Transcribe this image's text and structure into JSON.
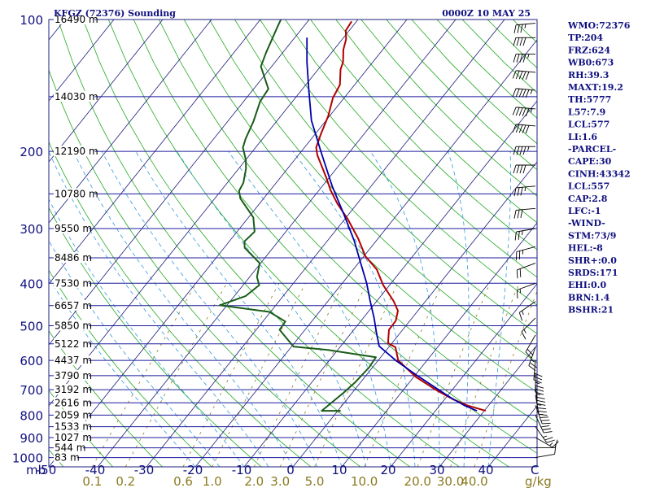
{
  "header": {
    "left": "KFGZ (72376) Sounding",
    "right": "0000Z 10 MAY 25"
  },
  "indices": [
    "WMO:72376",
    "TP:204",
    "FRZ:624",
    "WB0:673",
    "RH:39.3",
    "MAXT:19.2",
    "TH:5777",
    "L57:7.9",
    "LCL:577",
    "LI:1.6",
    "-PARCEL-",
    "CAPE:30",
    "CINH:43342",
    "LCL:557",
    "CAP:2.8",
    "LFC:-1",
    "-WIND-",
    "STM:73/9",
    "HEL:-8",
    "SHR+:0.0",
    "SRDS:171",
    "EHI:0.0",
    "BRN:1.4",
    "BSHR:21"
  ],
  "colors": {
    "frame": "#202080",
    "isobar": "#1c1c9c",
    "isotherm": "#1a1a7a",
    "dry_adiabat": "#22aa22",
    "moist_adiabat": "#3399dd",
    "mixing_ratio": "#8a7a20",
    "temperature": "#b30000",
    "dewpoint": "#1a5c1a",
    "parcel": "#0000aa",
    "wind": "#000000"
  },
  "chart_data": {
    "type": "skew-t",
    "pressure_unit": "mb",
    "y_axis": {
      "scale": "log",
      "range_mb": [
        1000,
        100
      ],
      "ticks_mb": [
        100,
        200,
        300,
        400,
        500,
        600,
        700,
        800,
        900,
        1000
      ],
      "tick_labels": [
        "100",
        "200",
        "300",
        "400",
        "500",
        "600",
        "700",
        "800",
        "900",
        "1000"
      ]
    },
    "x_axis": {
      "label": "C",
      "range_c": [
        -50,
        50
      ],
      "ticks_c": [
        -50,
        -40,
        -30,
        -20,
        -10,
        0,
        10,
        20,
        30,
        40
      ],
      "tick_labels": [
        "-50",
        "-40",
        "-30",
        "-20",
        "-10",
        "0",
        "10",
        "20",
        "30",
        "40"
      ]
    },
    "height_labels": [
      {
        "p": 100,
        "text": "16490 m"
      },
      {
        "p": 150,
        "text": "14030 m"
      },
      {
        "p": 200,
        "text": "12190 m"
      },
      {
        "p": 250,
        "text": "10780 m"
      },
      {
        "p": 300,
        "text": "9550 m"
      },
      {
        "p": 350,
        "text": "8486 m"
      },
      {
        "p": 400,
        "text": "7530 m"
      },
      {
        "p": 450,
        "text": "6657 m"
      },
      {
        "p": 500,
        "text": "5850 m"
      },
      {
        "p": 550,
        "text": "5122 m"
      },
      {
        "p": 600,
        "text": "4437 m"
      },
      {
        "p": 650,
        "text": "3790 m"
      },
      {
        "p": 700,
        "text": "3192 m"
      },
      {
        "p": 750,
        "text": "2616 m"
      },
      {
        "p": 800,
        "text": "2059 m"
      },
      {
        "p": 850,
        "text": "1533 m"
      },
      {
        "p": 900,
        "text": "1027 m"
      },
      {
        "p": 950,
        "text": "544 m"
      },
      {
        "p": 1000,
        "text": "83 m"
      }
    ],
    "mixing_ratio": {
      "unit": "g/kg",
      "labels": [
        "0.1",
        "0.2",
        "0.6",
        "1.0",
        "2.0",
        "3.0",
        "5.0",
        "10.0",
        "20.0",
        "30.0",
        "40.0"
      ],
      "values": [
        0.1,
        0.2,
        0.6,
        1.0,
        2.0,
        3.0,
        5.0,
        10.0,
        20.0,
        30.0,
        40.0
      ]
    },
    "series": [
      {
        "name": "temperature",
        "points": [
          [
            782,
            30.3
          ],
          [
            760,
            25.6
          ],
          [
            736,
            21.7
          ],
          [
            700,
            16.6
          ],
          [
            655,
            10.5
          ],
          [
            600,
            4.1
          ],
          [
            560,
            1.4
          ],
          [
            548,
            -0.8
          ],
          [
            535,
            -1.5
          ],
          [
            511,
            -2.8
          ],
          [
            487,
            -2.9
          ],
          [
            462,
            -4.1
          ],
          [
            439,
            -6.6
          ],
          [
            404,
            -11.3
          ],
          [
            372,
            -15.2
          ],
          [
            347,
            -19.7
          ],
          [
            316,
            -24.1
          ],
          [
            286,
            -29.3
          ],
          [
            263,
            -34.1
          ],
          [
            245,
            -37.7
          ],
          [
            231,
            -40.3
          ],
          [
            204,
            -46.1
          ],
          [
            196,
            -47.6
          ],
          [
            183,
            -48.8
          ],
          [
            166,
            -50.3
          ],
          [
            151,
            -52.3
          ],
          [
            141,
            -53.0
          ],
          [
            130,
            -55.4
          ],
          [
            125,
            -56.1
          ],
          [
            117,
            -58.1
          ],
          [
            111,
            -59.2
          ],
          [
            106,
            -60.7
          ],
          [
            101,
            -61.0
          ]
        ]
      },
      {
        "name": "dewpoint",
        "points": [
          [
            782,
            0.6
          ],
          [
            782,
            -3.3
          ],
          [
            712,
            -1.8
          ],
          [
            672,
            -1.1
          ],
          [
            622,
            -0.7
          ],
          [
            590,
            -1.0
          ],
          [
            568,
            -12.0
          ],
          [
            558,
            -19.6
          ],
          [
            511,
            -25.2
          ],
          [
            489,
            -25.4
          ],
          [
            465,
            -30.2
          ],
          [
            449,
            -41.5
          ],
          [
            428,
            -37.7
          ],
          [
            404,
            -36.7
          ],
          [
            387,
            -38.5
          ],
          [
            360,
            -40.2
          ],
          [
            332,
            -45.8
          ],
          [
            321,
            -46.9
          ],
          [
            305,
            -46.4
          ],
          [
            293,
            -47.8
          ],
          [
            283,
            -49.0
          ],
          [
            256,
            -54.8
          ],
          [
            246,
            -56.3
          ],
          [
            236,
            -56.7
          ],
          [
            219,
            -58.5
          ],
          [
            209,
            -60.0
          ],
          [
            196,
            -62.6
          ],
          [
            187,
            -63.5
          ],
          [
            171,
            -64.7
          ],
          [
            154,
            -66.6
          ],
          [
            144,
            -67.0
          ],
          [
            128,
            -72.2
          ],
          [
            119,
            -73.4
          ],
          [
            104,
            -75.3
          ],
          [
            100,
            -75.8
          ]
        ]
      },
      {
        "name": "parcel",
        "points": [
          [
            782,
            28.5
          ],
          [
            760,
            25.0
          ],
          [
            730,
            21.0
          ],
          [
            700,
            17.2
          ],
          [
            650,
            10.5
          ],
          [
            600,
            3.6
          ],
          [
            557,
            -2.1
          ],
          [
            520,
            -4.8
          ],
          [
            480,
            -7.8
          ],
          [
            440,
            -11.3
          ],
          [
            400,
            -15.0
          ],
          [
            360,
            -19.5
          ],
          [
            320,
            -24.5
          ],
          [
            280,
            -30.7
          ],
          [
            240,
            -38.0
          ],
          [
            200,
            -46.0
          ],
          [
            170,
            -53.0
          ],
          [
            145,
            -58.5
          ],
          [
            125,
            -63.5
          ],
          [
            110,
            -67.5
          ]
        ]
      }
    ]
  },
  "wind_barbs": [
    {
      "p": 1000,
      "dir": 80,
      "spd": 10
    },
    {
      "p": 950,
      "dir": 90,
      "spd": 10
    },
    {
      "p": 900,
      "dir": 120,
      "spd": 15
    },
    {
      "p": 850,
      "dir": 145,
      "spd": 25
    },
    {
      "p": 800,
      "dir": 155,
      "spd": 30
    },
    {
      "p": 760,
      "dir": 160,
      "spd": 35
    },
    {
      "p": 720,
      "dir": 170,
      "spd": 35
    },
    {
      "p": 680,
      "dir": 175,
      "spd": 35
    },
    {
      "p": 640,
      "dir": 180,
      "spd": 35
    },
    {
      "p": 600,
      "dir": 185,
      "spd": 30
    },
    {
      "p": 560,
      "dir": 200,
      "spd": 25
    },
    {
      "p": 525,
      "dir": 210,
      "spd": 20
    },
    {
      "p": 480,
      "dir": 225,
      "spd": 15
    },
    {
      "p": 440,
      "dir": 235,
      "spd": 15
    },
    {
      "p": 400,
      "dir": 250,
      "spd": 15
    },
    {
      "p": 360,
      "dir": 250,
      "spd": 20
    },
    {
      "p": 330,
      "dir": 255,
      "spd": 25
    },
    {
      "p": 300,
      "dir": 260,
      "spd": 25
    },
    {
      "p": 270,
      "dir": 265,
      "spd": 30
    },
    {
      "p": 240,
      "dir": 265,
      "spd": 35
    },
    {
      "p": 215,
      "dir": 270,
      "spd": 40
    },
    {
      "p": 195,
      "dir": 270,
      "spd": 45
    },
    {
      "p": 175,
      "dir": 275,
      "spd": 50
    },
    {
      "p": 160,
      "dir": 275,
      "spd": 55
    },
    {
      "p": 145,
      "dir": 275,
      "spd": 55
    },
    {
      "p": 132,
      "dir": 275,
      "spd": 50
    },
    {
      "p": 120,
      "dir": 270,
      "spd": 45
    },
    {
      "p": 110,
      "dir": 270,
      "spd": 40
    },
    {
      "p": 102,
      "dir": 265,
      "spd": 35
    }
  ]
}
